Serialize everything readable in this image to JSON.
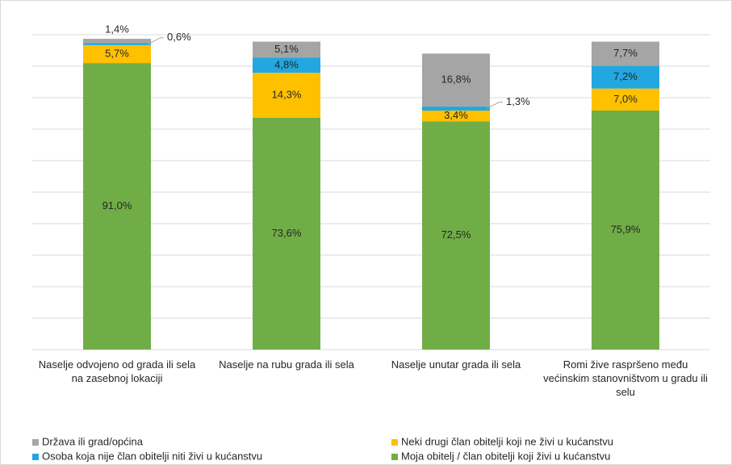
{
  "chart_data": {
    "type": "stacked_bar",
    "categories": [
      "Naselje odvojeno od grada ili sela na zasebnoj lokaciji",
      "Naselje na rubu grada ili sela",
      "Naselje unutar grada ili sela",
      "Romi žive raspršeno među većinskim stanovništvom u gradu ili selu"
    ],
    "series": [
      {
        "name": "Moja obitelj / član obitelji koji živi u kućanstvu",
        "color": "#70ad47",
        "values": [
          91.0,
          73.6,
          72.5,
          75.9
        ],
        "value_labels": [
          "91,0%",
          "73,6%",
          "72,5%",
          "75,9%"
        ]
      },
      {
        "name": "Neki drugi član obitelji koji ne živi u kućanstvu",
        "color": "#ffc000",
        "values": [
          5.7,
          14.3,
          3.4,
          7.0
        ],
        "value_labels": [
          "5,7%",
          "14,3%",
          "3,4%",
          "7,0%"
        ]
      },
      {
        "name": "Osoba koja nije član obitelji niti živi u kućanstvu",
        "color": "#22a7e0",
        "values": [
          0.6,
          4.8,
          1.3,
          7.2
        ],
        "value_labels": [
          "0,6%",
          "4,8%",
          "1,3%",
          "7,2%"
        ]
      },
      {
        "name": "Država ili grad/općina",
        "color": "#a5a5a5",
        "values": [
          1.4,
          5.1,
          16.8,
          7.7
        ],
        "value_labels": [
          "1,4%",
          "5,1%",
          "16,8%",
          "7,7%"
        ]
      }
    ],
    "ylim": [
      0,
      100
    ],
    "yticks": [
      0,
      10,
      20,
      30,
      40,
      50,
      60,
      70,
      80,
      90,
      100
    ],
    "grid": true
  }
}
